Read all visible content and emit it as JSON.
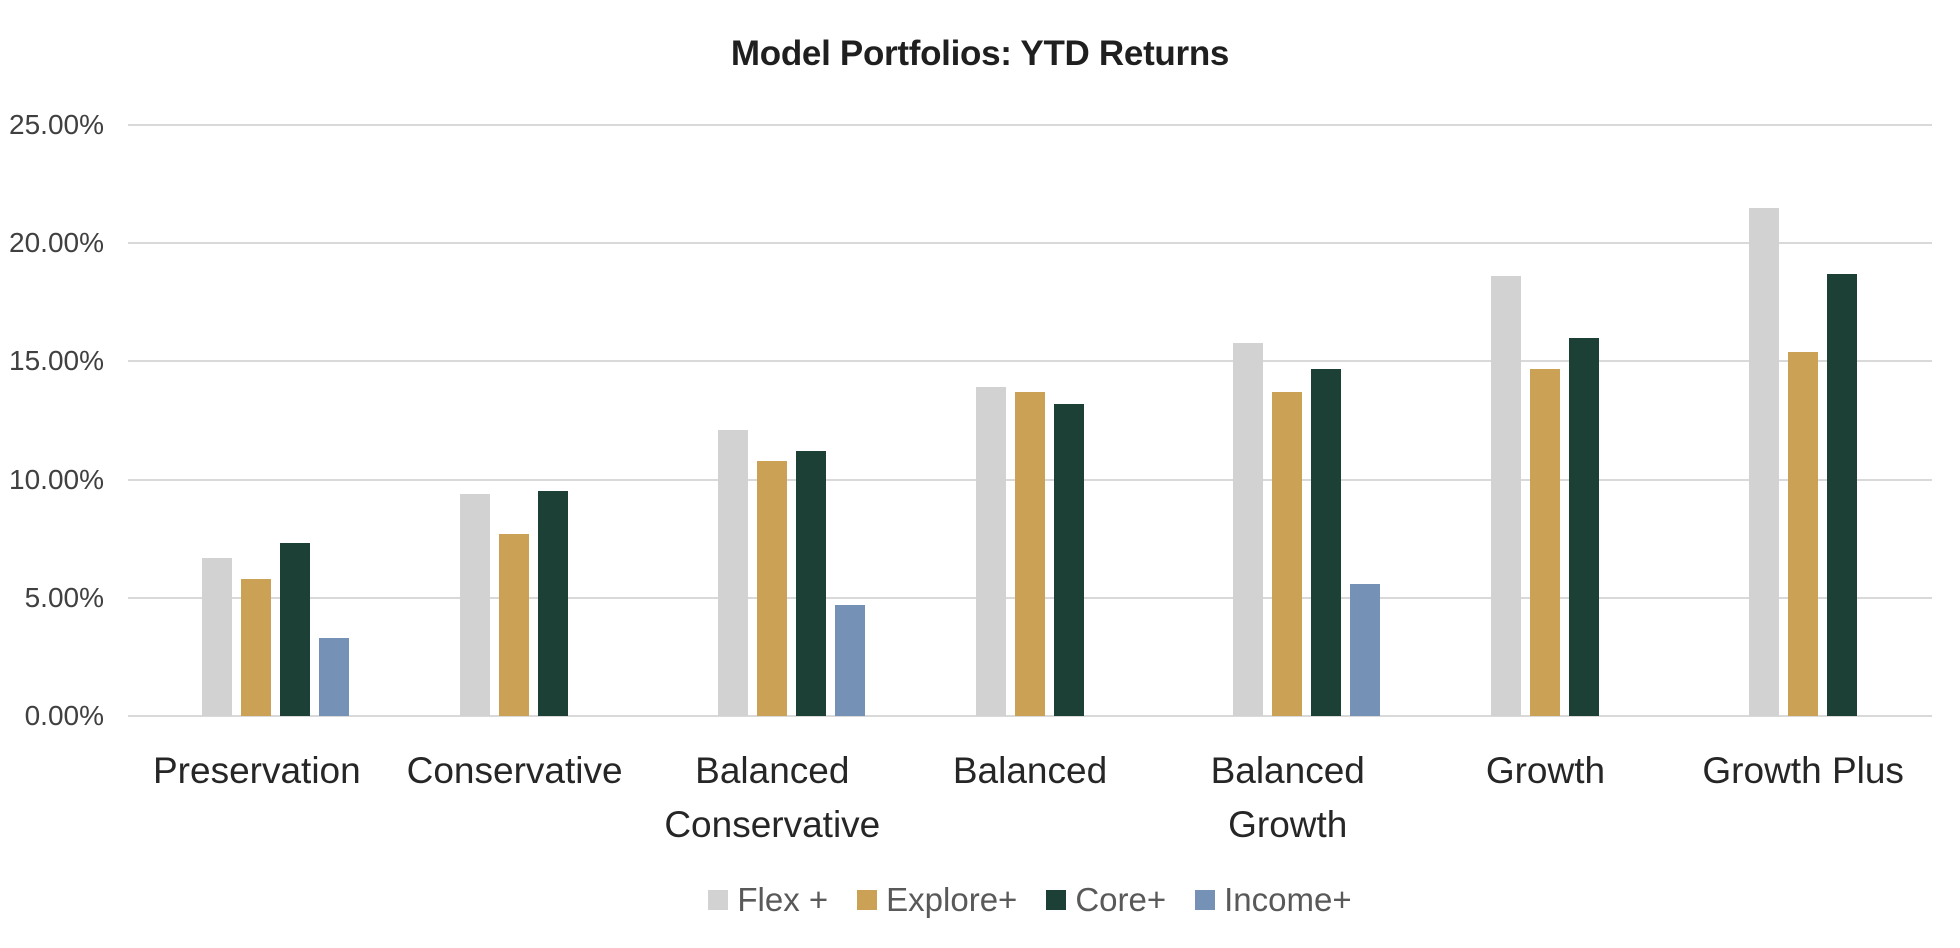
{
  "chart_data": {
    "type": "bar",
    "title": "Model Portfolios: YTD Returns",
    "categories": [
      "Preservation",
      "Conservative",
      "Balanced Conservative",
      "Balanced",
      "Balanced Growth",
      "Growth",
      "Growth Plus"
    ],
    "series": [
      {
        "name": "Flex +",
        "color": "#D2D2D2",
        "values": [
          6.7,
          9.4,
          12.1,
          13.9,
          15.8,
          18.6,
          21.5
        ]
      },
      {
        "name": "Explore+",
        "color": "#CBA156",
        "values": [
          5.8,
          7.7,
          10.8,
          13.7,
          13.7,
          14.7,
          15.4
        ]
      },
      {
        "name": "Core+",
        "color": "#1C4036",
        "values": [
          7.3,
          9.5,
          11.2,
          13.2,
          14.7,
          16.0,
          18.7
        ]
      },
      {
        "name": "Income+",
        "color": "#7591B6",
        "values": [
          3.3,
          null,
          4.7,
          null,
          5.6,
          null,
          null
        ]
      }
    ],
    "ylim": [
      0,
      25
    ],
    "ytick_step": 5,
    "ytick_labels": [
      "0.00%",
      "5.00%",
      "10.00%",
      "15.00%",
      "20.00%",
      "25.00%"
    ],
    "yaxis_format": "percent",
    "grid": "horizontal",
    "legend_position": "bottom"
  },
  "colors": {
    "background": "#FFFFFF",
    "gridline": "#D9D9D9",
    "axis_text": "#404040",
    "category_text": "#262626",
    "legend_text": "#595959",
    "title_text": "#1F1F1F"
  }
}
